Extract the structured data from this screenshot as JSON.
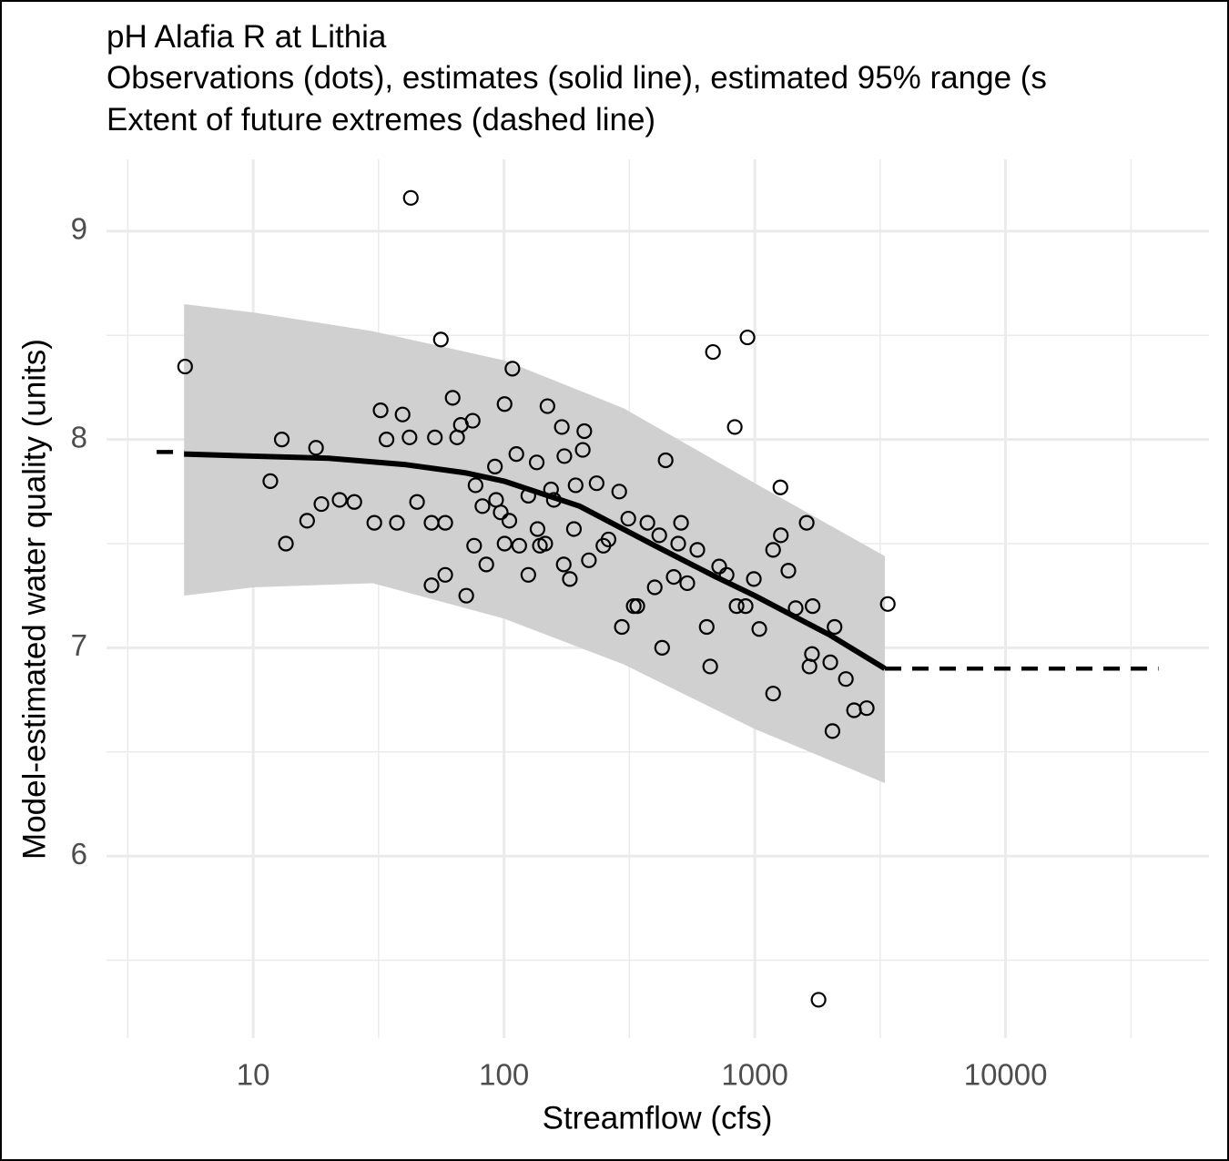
{
  "chart_data": {
    "type": "scatter",
    "title_lines": [
      "pH Alafia R at Lithia",
      "Observations (dots), estimates (solid line), estimated 95% range (s",
      "Extent of future extremes (dashed line)"
    ],
    "xlabel": "Streamflow (cfs)",
    "ylabel": "Model-estimated water quality (units)",
    "xscale": "log",
    "xlim": [
      2.6,
      64700
    ],
    "ylim": [
      5.126,
      9.345
    ],
    "xticks": [
      10,
      100,
      1000,
      10000
    ],
    "yticks": [
      6,
      7,
      8,
      9
    ],
    "x_minor_grid": [
      3.16,
      31.6,
      316,
      3162,
      31623
    ],
    "y_minor_grid": [
      5.5,
      6.5,
      7.5,
      8.5
    ],
    "grid": true,
    "band": {
      "color": "#d0d0d0",
      "x": [
        5.3,
        10,
        30,
        100,
        300,
        1000,
        3300
      ],
      "upper": [
        8.65,
        8.61,
        8.52,
        8.38,
        8.15,
        7.79,
        7.44
      ],
      "lower": [
        7.25,
        7.29,
        7.31,
        7.14,
        6.92,
        6.61,
        6.35
      ]
    },
    "estimate": {
      "color": "#000000",
      "x": [
        5.3,
        10,
        20,
        40,
        70,
        100,
        200,
        400,
        700,
        1000,
        2000,
        3300
      ],
      "y": [
        7.93,
        7.92,
        7.91,
        7.88,
        7.84,
        7.8,
        7.68,
        7.49,
        7.34,
        7.25,
        7.06,
        6.9
      ]
    },
    "extremes": [
      {
        "x": [
          4.12,
          5.3
        ],
        "y": [
          7.94,
          7.94
        ]
      },
      {
        "x": [
          3300,
          40700
        ],
        "y": [
          6.9,
          6.9
        ]
      }
    ],
    "points_color": "#000000",
    "x": [
      5.35,
      42.5,
      56,
      935,
      681,
      832,
      1795,
      3390,
      11.7,
      13.5,
      13,
      16.4,
      18.7,
      17.8,
      22.1,
      25.3,
      30.4,
      32.2,
      37.4,
      39.4,
      45,
      51.4,
      58.3,
      70.7,
      51.4,
      58.3,
      62.4,
      67.3,
      75,
      100.5,
      108,
      149,
      209,
      170,
      85,
      93,
      100.5,
      125,
      146,
      173,
      183,
      218,
      295,
      329,
      399,
      427,
      475,
      495,
      643,
      664,
      772,
      846,
      991,
      1042,
      1183,
      1183,
      1265,
      1270,
      1361,
      1455,
      1610,
      1652,
      1690,
      1700,
      2000,
      2040,
      2080,
      2307,
      2487,
      2794,
      441,
      125,
      136,
      154,
      193,
      234,
      288,
      373,
      416,
      590,
      721,
      92,
      77,
      65,
      53,
      34,
      42,
      82,
      105,
      190,
      249,
      313,
      538,
      919,
      112,
      135,
      174,
      206,
      76,
      97,
      115,
      139,
      158,
      261,
      340,
      508
    ],
    "values": [
      8.35,
      9.16,
      8.48,
      8.49,
      8.42,
      8.06,
      5.31,
      7.21,
      7.8,
      7.5,
      8.0,
      7.61,
      7.69,
      7.96,
      7.71,
      7.7,
      7.6,
      8.14,
      7.6,
      8.12,
      7.7,
      7.3,
      7.35,
      7.25,
      7.6,
      7.6,
      8.2,
      8.07,
      8.09,
      8.17,
      8.34,
      8.16,
      8.04,
      8.06,
      7.4,
      7.71,
      7.5,
      7.35,
      7.5,
      7.4,
      7.33,
      7.42,
      7.1,
      7.2,
      7.29,
      7.0,
      7.34,
      7.5,
      7.1,
      6.91,
      7.35,
      7.2,
      7.33,
      7.09,
      6.78,
      7.47,
      7.77,
      7.54,
      7.37,
      7.19,
      7.6,
      6.91,
      6.97,
      7.2,
      6.93,
      6.6,
      7.1,
      6.85,
      6.7,
      6.71,
      7.9,
      7.73,
      7.57,
      7.76,
      7.78,
      7.79,
      7.75,
      7.6,
      7.54,
      7.47,
      7.39,
      7.87,
      7.78,
      8.01,
      8.01,
      8.0,
      8.01,
      7.68,
      7.61,
      7.57,
      7.49,
      7.62,
      7.31,
      7.2,
      7.93,
      7.89,
      7.92,
      7.95,
      7.49,
      7.65,
      7.49,
      7.49,
      7.71,
      7.52,
      7.2,
      7.6
    ]
  }
}
